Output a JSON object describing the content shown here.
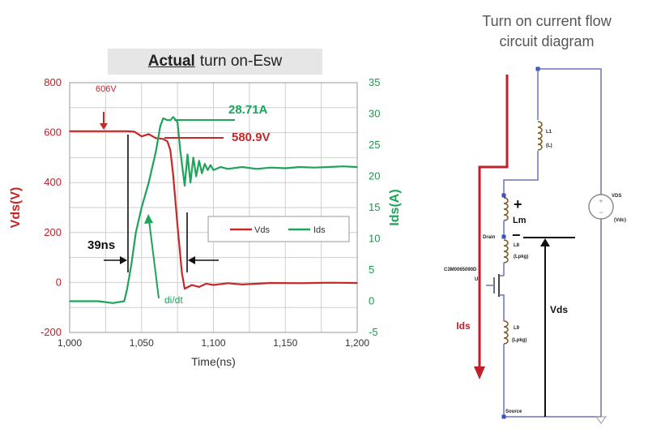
{
  "title": {
    "bold": "Actual",
    "rest": "turn on-Esw"
  },
  "circuit_title": [
    "Turn on current flow",
    "circuit diagram"
  ],
  "colors": {
    "vds": "#c62828",
    "ids": "#1ea35a",
    "grid": "#cfcfcf",
    "black": "#111111",
    "circuit": "#6a73b8"
  },
  "chart_data": {
    "type": "line",
    "xlabel": "Time(ns)",
    "ylabel_left": "Vds(V)",
    "ylabel_right": "Ids(A)",
    "xlim": [
      1000,
      1200
    ],
    "ylim_left": [
      -200,
      800
    ],
    "ylim_right": [
      -5,
      35
    ],
    "x_ticks": [
      "1,000",
      "1,050",
      "1,100",
      "1,150",
      "1,200"
    ],
    "y_ticks_left": [
      "800",
      "600",
      "400",
      "200",
      "0",
      "-200"
    ],
    "y_ticks_right": [
      "35",
      "30",
      "25",
      "20",
      "15",
      "10",
      "5",
      "0",
      "-5"
    ],
    "grid": true,
    "legend_position": "center-right",
    "series": [
      {
        "name": "Vds",
        "axis": "left",
        "x": [
          1000,
          1010,
          1020,
          1030,
          1040,
          1045,
          1050,
          1055,
          1060,
          1065,
          1068,
          1070,
          1072,
          1075,
          1078,
          1080,
          1085,
          1090,
          1095,
          1100,
          1110,
          1120,
          1140,
          1160,
          1180,
          1200
        ],
        "y": [
          606,
          606,
          606,
          606,
          606,
          604,
          585,
          594,
          578,
          575,
          565,
          530,
          430,
          230,
          40,
          -25,
          -10,
          -18,
          -5,
          -10,
          -3,
          -8,
          -2,
          -3,
          -1,
          -2
        ]
      },
      {
        "name": "Ids",
        "axis": "right",
        "x": [
          1000,
          1010,
          1020,
          1030,
          1038,
          1040,
          1043,
          1046,
          1050,
          1055,
          1060,
          1063,
          1065,
          1068,
          1070,
          1072,
          1075,
          1077,
          1080,
          1082,
          1084,
          1086,
          1088,
          1090,
          1092,
          1094,
          1096,
          1098,
          1100,
          1105,
          1110,
          1120,
          1130,
          1140,
          1150,
          1160,
          1170,
          1180,
          1190,
          1200
        ],
        "y": [
          0,
          0,
          0,
          -0.3,
          0,
          2,
          6,
          11,
          15,
          19,
          24,
          28,
          29.3,
          29,
          29,
          29.5,
          28.7,
          24,
          18.5,
          23.5,
          19,
          23,
          20,
          22.5,
          20.5,
          22,
          21,
          21.8,
          21,
          21.5,
          21.2,
          21.5,
          21.2,
          21.4,
          21.3,
          21.5,
          21.4,
          21.5,
          21.6,
          21.5
        ]
      }
    ],
    "annotations": {
      "v_peak": "606V",
      "i_peak": "28.71A",
      "v_level": "580.9V",
      "duration": "39ns",
      "didt": "di/dt"
    }
  },
  "circuit": {
    "L1": "L1",
    "L1_sub": "(L)",
    "L8": "L8",
    "L8_sub": "(Lpkg)",
    "L9": "L9",
    "L9_sub": "(Lpkg)",
    "vds_src": "VDS",
    "vds_src_sub": "(Vdc)",
    "drain": "Drain",
    "source": "Source",
    "device": "C3M0065090D",
    "device_sub": "U2",
    "lm": "Lm",
    "plus": "+",
    "minus": "−",
    "vds_label": "Vds",
    "ids_label": "Ids"
  }
}
